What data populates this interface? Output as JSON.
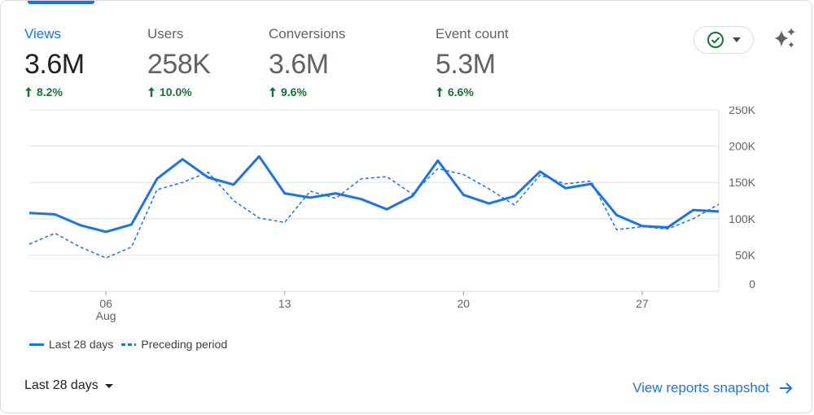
{
  "metrics": [
    {
      "label": "Views",
      "value": "3.6M",
      "change": "8.2%"
    },
    {
      "label": "Users",
      "value": "258K",
      "change": "10.0%"
    },
    {
      "label": "Conversions",
      "value": "3.6M",
      "change": "9.6%"
    },
    {
      "label": "Event count",
      "value": "5.3M",
      "change": "6.6%"
    }
  ],
  "icons": {
    "status": "check-circle-icon",
    "dropdown": "caret-down-icon",
    "insights": "sparkle-icon"
  },
  "colors": {
    "accent": "#1a73e8",
    "positive": "#137333",
    "grid": "#e0e0e0"
  },
  "chart_data": {
    "type": "line",
    "title": "",
    "xlabel": "",
    "ylabel": "",
    "ylim": [
      0,
      250000
    ],
    "y_ticks": [
      "0",
      "50K",
      "100K",
      "150K",
      "200K",
      "250K"
    ],
    "x_tick_labels": [
      {
        "day": 6,
        "label": "06",
        "sub": "Aug"
      },
      {
        "day": 13,
        "label": "13",
        "sub": ""
      },
      {
        "day": 20,
        "label": "20",
        "sub": ""
      },
      {
        "day": 27,
        "label": "27",
        "sub": ""
      }
    ],
    "x": [
      0,
      1,
      2,
      3,
      4,
      5,
      6,
      7,
      8,
      9,
      10,
      11,
      12,
      13,
      14,
      15,
      16,
      17,
      18,
      19,
      20,
      21,
      22,
      23,
      24,
      25,
      26,
      27
    ],
    "series": [
      {
        "name": "Last 28 days",
        "style": "solid",
        "values": [
          108000,
          106000,
          91000,
          82000,
          92000,
          155000,
          182000,
          157000,
          147000,
          186000,
          135000,
          129000,
          135000,
          127000,
          113000,
          131000,
          180000,
          133000,
          121000,
          131000,
          165000,
          142000,
          148000,
          105000,
          90000,
          88000,
          112000,
          110000
        ]
      },
      {
        "name": "Preceding period",
        "style": "dashed",
        "values": [
          65000,
          80000,
          61000,
          46000,
          61000,
          140000,
          150000,
          164000,
          125000,
          101000,
          95000,
          138000,
          128000,
          155000,
          158000,
          134000,
          169000,
          161000,
          141000,
          119000,
          160000,
          148000,
          152000,
          85000,
          89000,
          86000,
          100000,
          120000
        ]
      }
    ],
    "grid": true,
    "legend": "bottom-left"
  },
  "footer": {
    "range_label": "Last 28 days",
    "snapshot_label": "View reports snapshot"
  }
}
